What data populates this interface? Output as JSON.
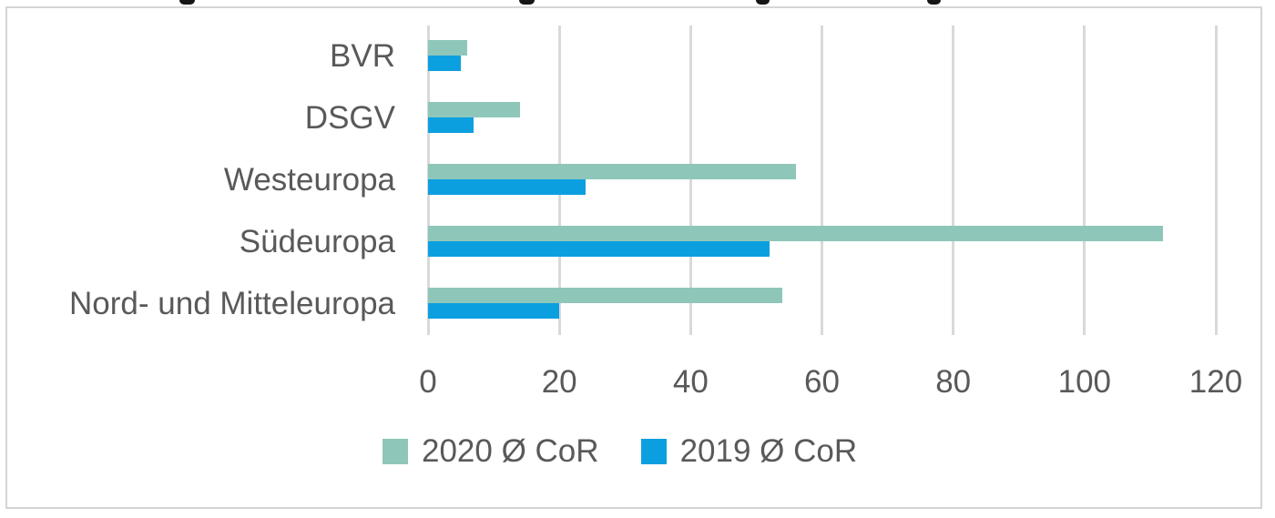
{
  "colors": {
    "series_2020": "#8EC7BA",
    "series_2019": "#0C9FE0",
    "text": "#595959",
    "gridline": "#D9D9D9",
    "card_border": "#D5D5D5"
  },
  "chart_data": {
    "type": "bar",
    "orientation": "horizontal",
    "title": "",
    "xlabel": "",
    "ylabel": "",
    "categories": [
      "BVR",
      "DSGV",
      "Westeuropa",
      "Südeuropa",
      "Nord- und Mitteleuropa"
    ],
    "series": [
      {
        "name": "2020 Ø CoR",
        "color": "#8EC7BA",
        "values": [
          6,
          14,
          56,
          112,
          54
        ]
      },
      {
        "name": "2019 Ø CoR",
        "color": "#0C9FE0",
        "values": [
          5,
          7,
          24,
          52,
          20
        ]
      }
    ],
    "xlim": [
      0,
      120
    ],
    "x_ticks": [
      0,
      20,
      40,
      60,
      80,
      100,
      120
    ],
    "grid": true,
    "legend_position": "bottom",
    "legend": [
      "2020 Ø CoR",
      "2019 Ø CoR"
    ]
  }
}
